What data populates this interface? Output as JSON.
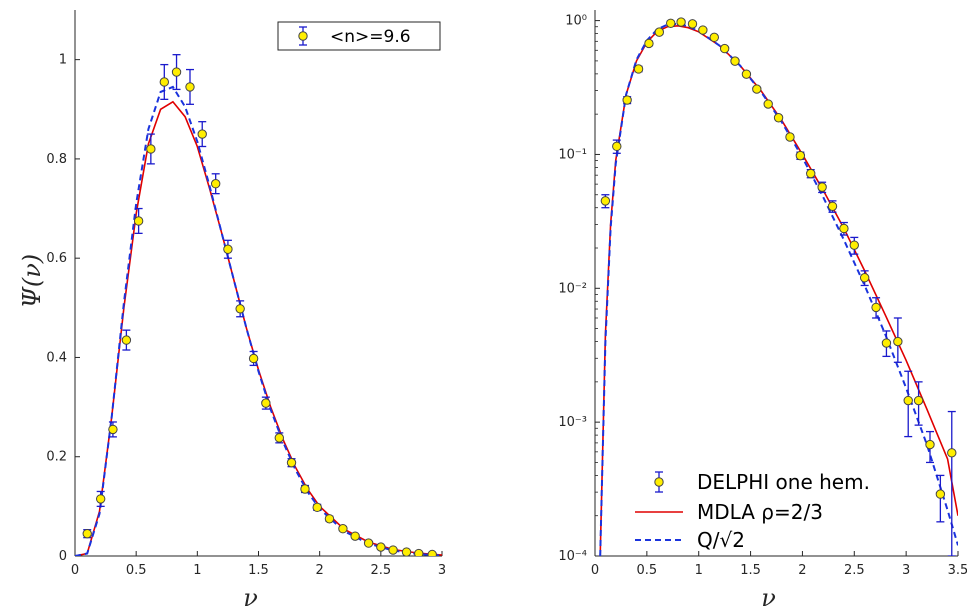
{
  "colors": {
    "marker_fill": "#ffee00",
    "marker_edge": "#444444",
    "errorbar": "#1a1acc",
    "mdla": "#e00000",
    "qcurve": "#1a33dd",
    "axis": "#262626"
  },
  "chart_data": [
    {
      "type": "scatter",
      "name": "left",
      "xlabel": "ν",
      "ylabel": "Ψ(ν)",
      "xlim": [
        0,
        3
      ],
      "ylim": [
        0,
        1.1
      ],
      "yscale": "linear",
      "xticks": [
        "0",
        "0.5",
        "1",
        "1.5",
        "2",
        "2.5",
        "3"
      ],
      "xtick_values": [
        0,
        0.5,
        1,
        1.5,
        2,
        2.5,
        3
      ],
      "yticks": [
        "0",
        "0.2",
        "0.4",
        "0.6",
        "0.8",
        "1"
      ],
      "ytick_values": [
        0,
        0.2,
        0.4,
        0.6,
        0.8,
        1
      ],
      "legend": {
        "position": "top-right",
        "entries": [
          "<n>=9.6"
        ]
      },
      "series": [
        {
          "kind": "points",
          "x": [
            0.1,
            0.21,
            0.31,
            0.42,
            0.52,
            0.62,
            0.73,
            0.83,
            0.94,
            1.04,
            1.15,
            1.25,
            1.35,
            1.46,
            1.56,
            1.67,
            1.77,
            1.88,
            1.98,
            2.08,
            2.19,
            2.29,
            2.4,
            2.5,
            2.6,
            2.71,
            2.81,
            2.92
          ],
          "y": [
            0.045,
            0.115,
            0.255,
            0.435,
            0.675,
            0.82,
            0.955,
            0.975,
            0.945,
            0.85,
            0.75,
            0.618,
            0.498,
            0.398,
            0.308,
            0.238,
            0.188,
            0.135,
            0.098,
            0.075,
            0.055,
            0.04,
            0.026,
            0.018,
            0.012,
            0.008,
            0.005,
            0.003
          ],
          "err": [
            0.008,
            0.015,
            0.015,
            0.02,
            0.025,
            0.03,
            0.035,
            0.035,
            0.035,
            0.025,
            0.02,
            0.018,
            0.016,
            0.014,
            0.012,
            0.01,
            0.008,
            0.007,
            0.006,
            0.005,
            0.004,
            0.003,
            0.003,
            0.002,
            0.002,
            0.002,
            0.002,
            0.002
          ]
        },
        {
          "kind": "line",
          "style": "solid",
          "x": [
            0.0,
            0.1,
            0.2,
            0.3,
            0.4,
            0.5,
            0.6,
            0.7,
            0.8,
            0.9,
            1.0,
            1.1,
            1.2,
            1.3,
            1.4,
            1.5,
            1.6,
            1.7,
            1.8,
            1.9,
            2.0,
            2.2,
            2.4,
            2.6,
            2.8,
            3.0
          ],
          "y": [
            0.0,
            0.005,
            0.09,
            0.28,
            0.5,
            0.69,
            0.83,
            0.9,
            0.915,
            0.885,
            0.825,
            0.74,
            0.65,
            0.555,
            0.46,
            0.375,
            0.3,
            0.235,
            0.18,
            0.135,
            0.1,
            0.054,
            0.028,
            0.013,
            0.006,
            0.002
          ]
        },
        {
          "kind": "line",
          "style": "dashed",
          "x": [
            0.0,
            0.1,
            0.2,
            0.3,
            0.4,
            0.5,
            0.6,
            0.7,
            0.8,
            0.9,
            1.0,
            1.1,
            1.2,
            1.3,
            1.4,
            1.5,
            1.6,
            1.7,
            1.8,
            1.9,
            2.0,
            2.2,
            2.4,
            2.6,
            2.8,
            3.0
          ],
          "y": [
            0.0,
            0.005,
            0.085,
            0.28,
            0.51,
            0.71,
            0.86,
            0.935,
            0.945,
            0.905,
            0.835,
            0.745,
            0.65,
            0.555,
            0.46,
            0.372,
            0.295,
            0.23,
            0.175,
            0.13,
            0.095,
            0.05,
            0.025,
            0.011,
            0.004,
            0.001
          ]
        }
      ]
    },
    {
      "type": "scatter",
      "name": "right",
      "xlabel": "ν",
      "xlim": [
        0,
        3.5
      ],
      "ylim": [
        0.0001,
        1.2
      ],
      "yscale": "log",
      "xticks": [
        "0",
        "0.5",
        "1",
        "1.5",
        "2",
        "2.5",
        "3",
        "3.5"
      ],
      "xtick_values": [
        0,
        0.5,
        1,
        1.5,
        2,
        2.5,
        3,
        3.5
      ],
      "yticks": [
        "10⁻⁴",
        "10⁻³",
        "10⁻²",
        "10⁻¹",
        "10⁰"
      ],
      "ytick_values": [
        0.0001,
        0.001,
        0.01,
        0.1,
        1
      ],
      "legend": {
        "position": "bottom-right",
        "entries": [
          "DELPHI one hem.",
          "MDLA  ρ=2/3",
          "Q/√2"
        ]
      },
      "series": [
        {
          "kind": "points",
          "x": [
            0.1,
            0.21,
            0.31,
            0.42,
            0.52,
            0.62,
            0.73,
            0.83,
            0.94,
            1.04,
            1.15,
            1.25,
            1.35,
            1.46,
            1.56,
            1.67,
            1.77,
            1.88,
            1.98,
            2.08,
            2.19,
            2.29,
            2.4,
            2.5,
            2.6,
            2.71,
            2.81,
            2.92,
            3.02,
            3.12,
            3.23,
            3.33,
            3.44
          ],
          "y": [
            0.045,
            0.115,
            0.255,
            0.435,
            0.675,
            0.82,
            0.955,
            0.975,
            0.945,
            0.85,
            0.75,
            0.618,
            0.498,
            0.398,
            0.308,
            0.238,
            0.188,
            0.135,
            0.098,
            0.072,
            0.057,
            0.041,
            0.028,
            0.021,
            0.012,
            0.0072,
            0.0039,
            0.004,
            0.00145,
            0.00145,
            0.00068,
            0.00029,
            0.00059
          ],
          "lo": [
            0.04,
            0.102,
            0.24,
            0.415,
            0.65,
            0.79,
            0.92,
            0.94,
            0.91,
            0.825,
            0.73,
            0.6,
            0.483,
            0.386,
            0.298,
            0.231,
            0.182,
            0.13,
            0.092,
            0.067,
            0.052,
            0.037,
            0.025,
            0.018,
            0.0105,
            0.006,
            0.0031,
            0.0028,
            0.00078,
            0.00095,
            0.0005,
            0.00018,
            0.0001
          ],
          "hi": [
            0.05,
            0.128,
            0.27,
            0.455,
            0.7,
            0.85,
            0.99,
            1.01,
            0.98,
            0.875,
            0.77,
            0.636,
            0.513,
            0.41,
            0.318,
            0.245,
            0.194,
            0.14,
            0.104,
            0.077,
            0.062,
            0.045,
            0.031,
            0.024,
            0.0135,
            0.0085,
            0.0048,
            0.006,
            0.0024,
            0.002,
            0.00085,
            0.0004,
            0.0012
          ]
        },
        {
          "kind": "line",
          "style": "solid",
          "x": [
            0.05,
            0.1,
            0.15,
            0.2,
            0.3,
            0.4,
            0.5,
            0.6,
            0.7,
            0.8,
            0.9,
            1.0,
            1.2,
            1.4,
            1.6,
            1.8,
            2.0,
            2.2,
            2.4,
            2.6,
            2.8,
            3.0,
            3.2,
            3.4,
            3.5
          ],
          "y": [
            0.0001,
            0.0045,
            0.03,
            0.09,
            0.28,
            0.5,
            0.69,
            0.83,
            0.9,
            0.915,
            0.885,
            0.825,
            0.65,
            0.46,
            0.3,
            0.18,
            0.1,
            0.054,
            0.028,
            0.0135,
            0.0063,
            0.0029,
            0.00125,
            0.00053,
            0.0002
          ]
        },
        {
          "kind": "line",
          "style": "dashed",
          "x": [
            0.05,
            0.1,
            0.15,
            0.2,
            0.3,
            0.4,
            0.5,
            0.6,
            0.7,
            0.8,
            0.9,
            1.0,
            1.2,
            1.4,
            1.6,
            1.8,
            2.0,
            2.2,
            2.4,
            2.6,
            2.8,
            3.0,
            3.2,
            3.4,
            3.5
          ],
          "y": [
            0.0001,
            0.004,
            0.028,
            0.085,
            0.28,
            0.51,
            0.71,
            0.86,
            0.935,
            0.945,
            0.905,
            0.835,
            0.65,
            0.46,
            0.295,
            0.175,
            0.095,
            0.048,
            0.023,
            0.0105,
            0.0045,
            0.0018,
            0.00068,
            0.00022,
            0.00012
          ]
        }
      ]
    }
  ]
}
